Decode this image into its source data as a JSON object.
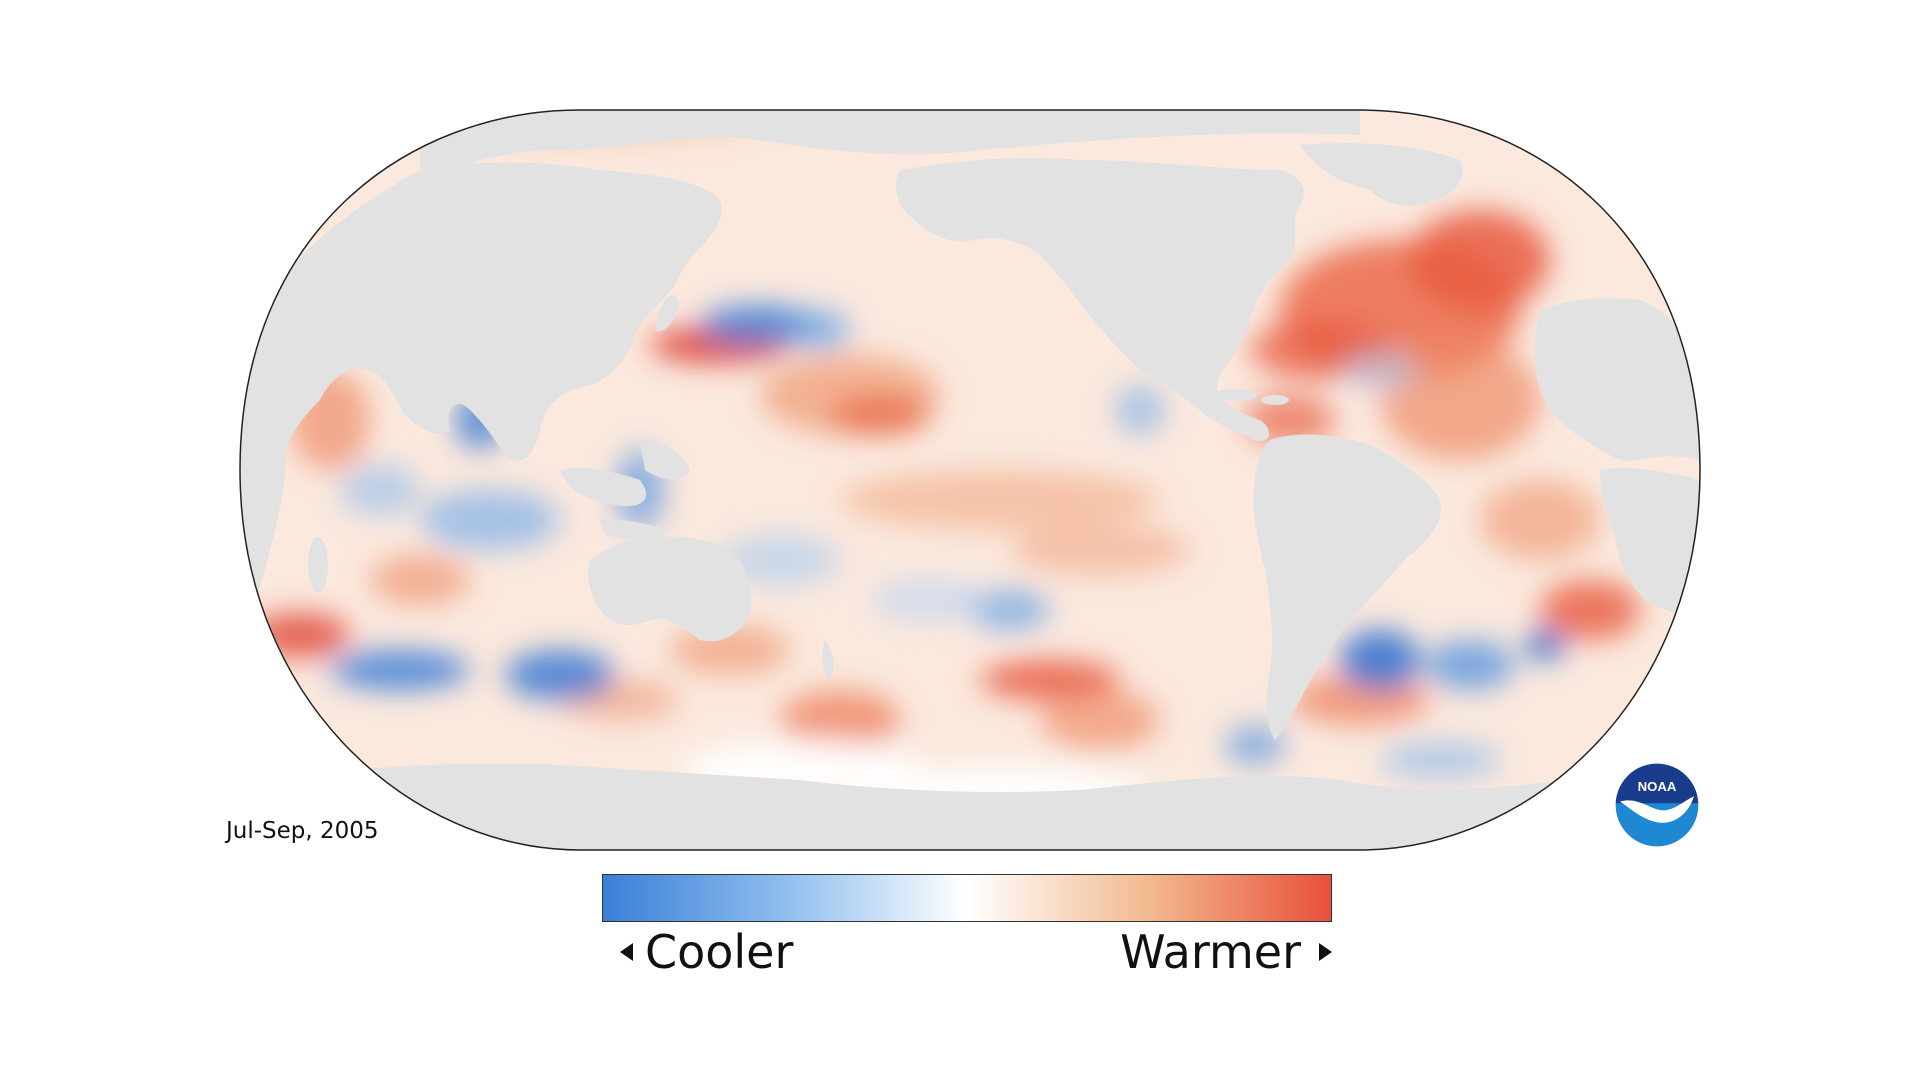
{
  "map": {
    "period": "Jul-Sep, 2005",
    "projection": "Robinson, Pacific-centered",
    "variable": "sea surface temperature anomaly",
    "land_color": "#e2e2e2",
    "ocean_neutral_color": "#ffffff",
    "hotspots_warm": [
      "Northwest Pacific (Kuroshio)",
      "North Atlantic",
      "Gulf of Mexico / Caribbean",
      "Central Pacific",
      "South Atlantic"
    ],
    "hotspots_cool": [
      "South Indian Ocean",
      "Southwest Atlantic",
      "North Pacific near Japan",
      "Tropical western Pacific"
    ]
  },
  "legend": {
    "cooler_label": "Cooler",
    "warmer_label": "Warmer",
    "colors": [
      "#3a7fd6",
      "#8fbeef",
      "#ffffff",
      "#f2b98f",
      "#e8503a"
    ]
  },
  "logo": {
    "text": "NOAA",
    "color_top": "#1a3c8c",
    "color_bottom": "#1e88d2"
  }
}
